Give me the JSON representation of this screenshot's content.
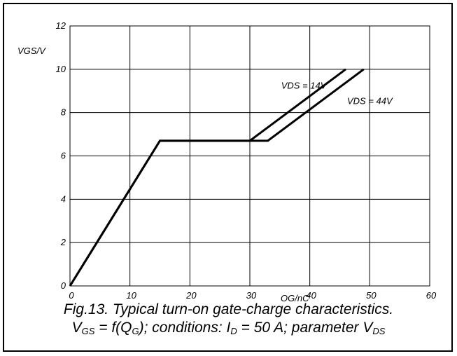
{
  "chart_data": {
    "type": "line",
    "xlabel": "QG/nC",
    "ylabel": "VGS/V",
    "xlim": [
      0,
      60
    ],
    "ylim": [
      0,
      12
    ],
    "xticks": [
      "0",
      "10",
      "20",
      "30",
      "40",
      "50",
      "60"
    ],
    "yticks": [
      "0",
      "2",
      "4",
      "6",
      "8",
      "10",
      "12"
    ],
    "grid": true,
    "series": [
      {
        "name": "VDS = 14V",
        "x": [
          0,
          15,
          30,
          46
        ],
        "y": [
          0,
          6.7,
          6.7,
          10
        ]
      },
      {
        "name": "VDS = 44V",
        "x": [
          0,
          15,
          33,
          49
        ],
        "y": [
          0,
          6.7,
          6.7,
          10
        ]
      }
    ]
  },
  "caption": {
    "line1": "Fig.13.  Typical turn-on gate-charge characteristics.",
    "line2_parts": {
      "v": "V",
      "gs_sub": "GS",
      "eq": " = f(Q",
      "g_sub": "G",
      "cond": "); conditions: I",
      "d_sub": "D",
      "rest": " = 50 A; parameter V",
      "ds_sub": "DS"
    }
  }
}
